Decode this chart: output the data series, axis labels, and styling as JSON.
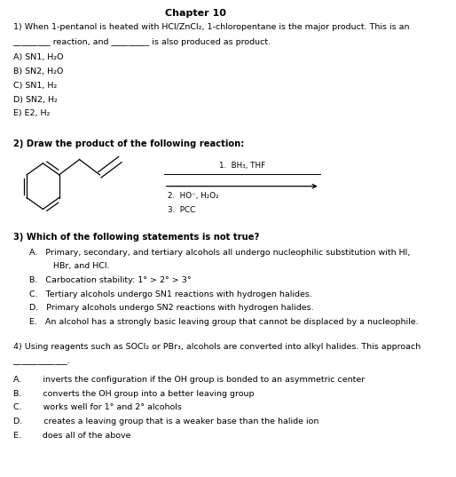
{
  "title": "Chapter 10",
  "background_color": "#ffffff",
  "text_color": "#000000",
  "font_size": 6.8,
  "bold_font_size": 7.2,
  "title_font_size": 8.0,
  "q1_line1": "1) When 1-pentanol is heated with HCl/ZnCl₂, 1-chloropentane is the major product. This is an",
  "q1_line2": "_________ reaction, and _________ is also produced as product.",
  "q1_opts": [
    "A) SN1, H₂O",
    "B) SN2, H₂O",
    "C) SN1, H₂",
    "D) SN2, H₂",
    "E) E2, H₂"
  ],
  "q2_text": "2) Draw the product of the following reaction:",
  "q2_reagent1": "1.  BH₃, THF",
  "q2_reagent2": "2.  HO⁻, H₂O₂",
  "q2_reagent3": "3.  PCC",
  "q3_text": "3) Which of the following statements is not true?",
  "q3_opts": [
    "A.   Primary, secondary, and tertiary alcohols all undergo nucleophilic substitution with HI,",
    "         HBr, and HCl.",
    "B.   Carbocation stability: 1° > 2° > 3°",
    "C.   Tertiary alcohols undergo SN1 reactions with hydrogen halides.",
    "D.   Primary alcohols undergo SN2 reactions with hydrogen halides.",
    "E.   An alcohol has a strongly basic leaving group that cannot be displaced by a nucleophile."
  ],
  "q4_line1": "4) Using reagents such as SOCl₂ or PBr₃, alcohols are converted into alkyl halides. This approach",
  "q4_line2": "_____________.",
  "q4_opts": [
    "A.        inverts the configuration if the OH group is bonded to an asymmetric center",
    "B.        converts the OH group into a better leaving group",
    "C.        works well for 1° and 2° alcohols",
    "D.        creates a leaving group that is a weaker base than the halide ion",
    "E.        does all of the above"
  ]
}
